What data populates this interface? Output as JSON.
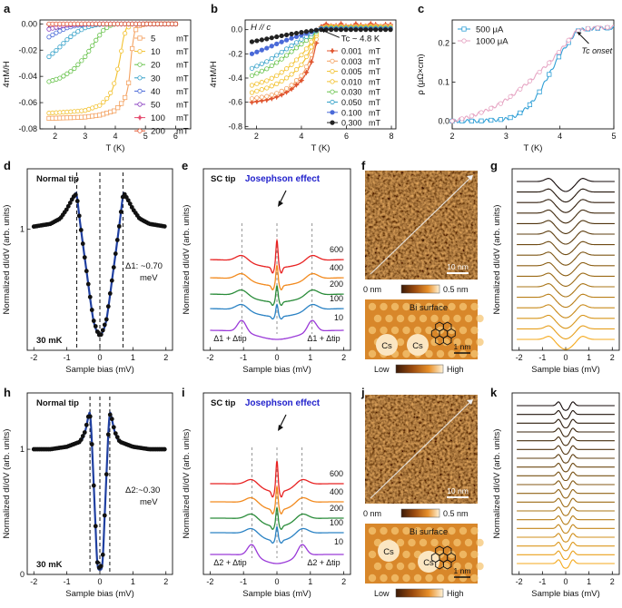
{
  "panel_labels": [
    "a",
    "b",
    "c",
    "d",
    "e",
    "f",
    "g",
    "h",
    "i",
    "j",
    "k"
  ],
  "colors": {
    "5": "#f4a261",
    "10": "#f2c12e",
    "20": "#66c24a",
    "30": "#33a0c8",
    "40": "#4a6ad8",
    "50": "#8a3fc0",
    "100": "#e54a6e",
    "200": "#e0552f",
    "c500": "#2e9fd6",
    "c1000": "#e6a3c2",
    "stsNormal": "#1f3fa0",
    "blueLbl": "#2222cc",
    "spec600": "#e82222",
    "spec400": "#f28a1e",
    "spec200": "#2a8c3a",
    "spec100": "#2a82c4",
    "spec10": "#9a3ad8"
  },
  "chart_data": [
    {
      "id": "a",
      "type": "line",
      "annotation": "H // c",
      "xlabel": "T (K)",
      "ylabel": "4πM/H",
      "xlim": [
        1.5,
        6.5
      ],
      "ylim": [
        -0.08,
        0.003
      ],
      "xticks": [
        2,
        3,
        4,
        5,
        6
      ],
      "xtick_labels": [
        "2",
        "3",
        "4",
        "5",
        "6"
      ],
      "yticks": [
        0,
        -0.02,
        -0.04,
        -0.06,
        -0.08
      ],
      "ytick_labels": [
        "0.00",
        "-0.02",
        "-0.04",
        "-0.06",
        "-0.08"
      ],
      "legend_position": "right",
      "series": [
        {
          "name": "5",
          "unit": "mT",
          "color_key": "5",
          "x": [
            1.8,
            2.5,
            3.0,
            3.5,
            4.0,
            4.3,
            4.45,
            4.55,
            4.7,
            5.0,
            6.0
          ],
          "y": [
            -0.072,
            -0.0715,
            -0.071,
            -0.0695,
            -0.066,
            -0.058,
            -0.044,
            -0.02,
            -0.002,
            0,
            0
          ]
        },
        {
          "name": "10",
          "unit": "mT",
          "color_key": "10",
          "x": [
            1.8,
            2.5,
            3.0,
            3.5,
            3.8,
            4.0,
            4.15,
            4.3,
            4.5,
            5.0,
            6.0
          ],
          "y": [
            -0.068,
            -0.067,
            -0.066,
            -0.062,
            -0.055,
            -0.043,
            -0.027,
            -0.008,
            0,
            0,
            0
          ]
        },
        {
          "name": "20",
          "unit": "mT",
          "color_key": "20",
          "x": [
            1.8,
            2.2,
            2.6,
            3.0,
            3.2,
            3.4,
            3.6,
            3.8,
            4.0,
            5.0,
            6.0
          ],
          "y": [
            -0.044,
            -0.041,
            -0.035,
            -0.025,
            -0.018,
            -0.011,
            -0.005,
            -0.0015,
            0,
            0,
            0
          ]
        },
        {
          "name": "30",
          "unit": "mT",
          "color_key": "30",
          "x": [
            1.8,
            2.1,
            2.4,
            2.7,
            3.0,
            3.3,
            3.6,
            4.0,
            5.0,
            6.0
          ],
          "y": [
            -0.025,
            -0.019,
            -0.012,
            -0.0065,
            -0.003,
            -0.001,
            -0.0002,
            0,
            0,
            0
          ]
        },
        {
          "name": "40",
          "unit": "mT",
          "color_key": "40",
          "x": [
            1.8,
            2.1,
            2.4,
            2.7,
            3.0,
            3.5,
            4.0,
            5.0,
            6.0
          ],
          "y": [
            -0.01,
            -0.006,
            -0.003,
            -0.0013,
            -0.0004,
            0,
            0,
            0,
            0
          ]
        },
        {
          "name": "50",
          "unit": "mT",
          "color_key": "50",
          "x": [
            1.8,
            2.1,
            2.4,
            2.8,
            3.2,
            4.0,
            5.0,
            6.0
          ],
          "y": [
            -0.004,
            -0.0022,
            -0.001,
            -0.0002,
            0,
            0,
            0,
            0
          ]
        },
        {
          "name": "100",
          "unit": "mT",
          "color_key": "100",
          "x": [
            1.8,
            2.5,
            3.0,
            4.0,
            5.0,
            6.0
          ],
          "y": [
            -0.0005,
            0,
            0,
            0,
            0,
            0
          ]
        },
        {
          "name": "200",
          "unit": "mT",
          "color_key": "200",
          "x": [
            1.8,
            2.5,
            3.0,
            4.0,
            5.0,
            6.0
          ],
          "y": [
            0,
            0,
            0,
            0,
            0,
            0
          ]
        }
      ]
    },
    {
      "id": "b",
      "type": "line",
      "annotation": "H // c",
      "tc_label": "Tc ~ 4.8 K",
      "xlabel": "T (K)",
      "ylabel": "4πM/H",
      "xlim": [
        1.5,
        8.2
      ],
      "ylim": [
        -0.82,
        0.08
      ],
      "xticks": [
        2,
        4,
        6,
        8
      ],
      "xtick_labels": [
        "2",
        "4",
        "6",
        "8"
      ],
      "yticks": [
        0,
        -0.2,
        -0.4,
        -0.6,
        -0.8
      ],
      "ytick_labels": [
        "0.0",
        "-0.2",
        "-0.4",
        "-0.6",
        "-0.8"
      ],
      "legend_position": "right",
      "series": [
        {
          "name": "0.001",
          "unit": "mT",
          "color_key": "200",
          "x": [
            1.8,
            2.5,
            3.0,
            3.5,
            4.0,
            4.3,
            4.5,
            4.65,
            4.8,
            5.2,
            6.0,
            7.0,
            8.0
          ],
          "y": [
            -0.6,
            -0.58,
            -0.55,
            -0.5,
            -0.42,
            -0.33,
            -0.24,
            -0.12,
            0.02,
            0.04,
            0.035,
            0.04,
            0.035
          ]
        },
        {
          "name": "0.003",
          "unit": "mT",
          "color_key": "5",
          "x": [
            1.8,
            2.5,
            3.0,
            3.5,
            4.0,
            4.3,
            4.55,
            4.8,
            5.2,
            6.0,
            7.0,
            8.0
          ],
          "y": [
            -0.57,
            -0.55,
            -0.52,
            -0.47,
            -0.38,
            -0.28,
            -0.15,
            0.01,
            0.03,
            0.025,
            0.03,
            0.03
          ]
        },
        {
          "name": "0.005",
          "unit": "mT",
          "color_key": "10",
          "x": [
            1.8,
            2.5,
            3.0,
            3.5,
            4.0,
            4.3,
            4.55,
            4.8,
            5.2,
            6.0,
            7.0,
            8.0
          ],
          "y": [
            -0.52,
            -0.48,
            -0.44,
            -0.38,
            -0.29,
            -0.2,
            -0.1,
            0.01,
            0.025,
            0.02,
            0.025,
            0.02
          ]
        },
        {
          "name": "0.010",
          "unit": "mT",
          "color_key": "10",
          "x": [
            1.8,
            2.5,
            3.0,
            3.5,
            4.0,
            4.3,
            4.55,
            4.8,
            5.2,
            6.0,
            7.0,
            8.0
          ],
          "y": [
            -0.46,
            -0.42,
            -0.37,
            -0.3,
            -0.21,
            -0.14,
            -0.07,
            0.01,
            0.02,
            0.02,
            0.02,
            0.02
          ]
        },
        {
          "name": "0.030",
          "unit": "mT",
          "color_key": "20",
          "x": [
            1.8,
            2.5,
            3.0,
            3.5,
            4.0,
            4.5,
            4.8,
            5.2,
            6.0,
            7.0,
            8.0
          ],
          "y": [
            -0.38,
            -0.32,
            -0.26,
            -0.19,
            -0.12,
            -0.05,
            0.01,
            0.015,
            0.015,
            0.015,
            0.015
          ]
        },
        {
          "name": "0.050",
          "unit": "mT",
          "color_key": "30",
          "x": [
            1.8,
            2.5,
            3.0,
            3.5,
            4.0,
            4.5,
            4.8,
            5.2,
            6.0,
            7.0,
            8.0
          ],
          "y": [
            -0.32,
            -0.26,
            -0.2,
            -0.14,
            -0.08,
            -0.03,
            0.01,
            0.01,
            0.01,
            0.01,
            0.01
          ]
        },
        {
          "name": "0.100",
          "unit": "mT",
          "color_key": "40",
          "x": [
            1.8,
            2.5,
            3.0,
            3.5,
            4.0,
            4.5,
            4.8,
            5.2,
            6.0,
            7.0,
            8.0
          ],
          "y": [
            -0.2,
            -0.15,
            -0.11,
            -0.075,
            -0.045,
            -0.015,
            0.005,
            0.005,
            0.005,
            0.005,
            0.005
          ]
        },
        {
          "name": "0.300",
          "unit": "mT",
          "color_key": "black",
          "x": [
            1.8,
            2.5,
            3.0,
            3.5,
            4.0,
            4.5,
            4.8,
            5.5,
            6.0,
            7.0,
            8.0
          ],
          "y": [
            -0.1,
            -0.075,
            -0.055,
            -0.038,
            -0.022,
            -0.008,
            0,
            0,
            0,
            0,
            0
          ]
        }
      ]
    },
    {
      "id": "c",
      "type": "line",
      "xlabel": "T (K)",
      "ylabel": "ρ (μΩ×cm)",
      "tc_label": "Tc onset",
      "xlim": [
        2,
        5
      ],
      "ylim": [
        -0.02,
        0.26
      ],
      "xticks": [
        2,
        3,
        4,
        5
      ],
      "xtick_labels": [
        "2",
        "3",
        "4",
        "5"
      ],
      "yticks": [
        0,
        0.1,
        0.2
      ],
      "ytick_labels": [
        "0.0",
        "0.1",
        "0.2"
      ],
      "legend_position": "top-left",
      "series": [
        {
          "name": "500 μA",
          "color_key": "c500",
          "x": [
            2.0,
            2.5,
            3.0,
            3.2,
            3.4,
            3.6,
            3.8,
            4.0,
            4.2,
            4.3,
            4.4,
            4.6,
            5.0
          ],
          "y": [
            0.0,
            0.0,
            0.005,
            0.015,
            0.035,
            0.07,
            0.12,
            0.17,
            0.21,
            0.23,
            0.235,
            0.238,
            0.24
          ]
        },
        {
          "name": "1000 μA",
          "color_key": "c1000",
          "x": [
            2.0,
            2.3,
            2.6,
            2.9,
            3.2,
            3.5,
            3.8,
            4.0,
            4.2,
            4.3,
            4.5,
            5.0
          ],
          "y": [
            0.0,
            0.01,
            0.025,
            0.045,
            0.075,
            0.11,
            0.15,
            0.18,
            0.215,
            0.23,
            0.238,
            0.242
          ]
        }
      ]
    },
    {
      "id": "d",
      "type": "line",
      "title": "Normal tip",
      "temp": "30 mK",
      "annotation_line1": "Δ1: ~0.70",
      "annotation_line2": "meV",
      "xlabel": "Sample bias (mV)",
      "ylabel": "Normalized dI/dV (arb. units)",
      "xlim": [
        -2.2,
        2.2
      ],
      "ylim": [
        0.1,
        1.45
      ],
      "xticks": [
        -2,
        -1,
        0,
        1,
        2
      ],
      "xtick_labels": [
        "-2",
        "-1",
        "0",
        "1",
        "2"
      ],
      "yticks": [
        1
      ],
      "ytick_labels": [
        "1"
      ],
      "gap_markers_mV": [
        -0.7,
        0,
        0.7
      ],
      "series": [
        {
          "name": "data",
          "x": [
            -2.0,
            -1.5,
            -1.2,
            -1.0,
            -0.85,
            -0.75,
            -0.7,
            -0.6,
            -0.4,
            -0.2,
            -0.05,
            0,
            0.05,
            0.2,
            0.4,
            0.6,
            0.7,
            0.75,
            0.85,
            1.0,
            1.2,
            1.5,
            2.0
          ],
          "y": [
            1.02,
            1.04,
            1.08,
            1.15,
            1.22,
            1.26,
            1.25,
            1.05,
            0.68,
            0.33,
            0.22,
            0.21,
            0.22,
            0.33,
            0.68,
            1.05,
            1.25,
            1.26,
            1.22,
            1.15,
            1.08,
            1.04,
            1.02
          ]
        }
      ]
    },
    {
      "id": "e",
      "type": "line",
      "title": "SC tip",
      "effect_label": "Josephson effect",
      "gap_label_left": "Δ1 + Δtip",
      "gap_label_right": "Δ1 + Δtip",
      "xlabel": "Sample bias (mV)",
      "ylabel": "Normalized dI/dV (arb. units)",
      "xlim": [
        -2.2,
        2.2
      ],
      "xticks": [
        -2,
        -1,
        0,
        1,
        2
      ],
      "xtick_labels": [
        "-2",
        "-1",
        "0",
        "1",
        "2"
      ],
      "gap_markers_mV": [
        -1.05,
        0,
        1.05
      ],
      "series_labels": [
        "600",
        "400",
        "200",
        "100",
        "10"
      ],
      "series_color_keys": [
        "spec600",
        "spec400",
        "spec200",
        "spec100",
        "spec10"
      ]
    },
    {
      "id": "f",
      "scale_bar_top": "10 nm",
      "cbar_min": "0 nm",
      "cbar_max": "0.5 nm",
      "surface_label": "Bi surface",
      "atom_labels": [
        "Cs",
        "Cs"
      ],
      "scale_bar_bottom": "1 nm",
      "low_label": "Low",
      "high_label": "High"
    },
    {
      "id": "g",
      "type": "line",
      "xlabel": "Sample bias (mV)",
      "ylabel": "Normalized dI/dV (arb. units)",
      "xlim": [
        -2.3,
        2.3
      ],
      "xticks": [
        -2,
        -1,
        0,
        1,
        2
      ],
      "xtick_labels": [
        "-2",
        "-1",
        "0",
        "1",
        "2"
      ],
      "n_curves": 16,
      "gap_mV": 0.7
    },
    {
      "id": "h",
      "type": "line",
      "title": "Normal tip",
      "temp": "30 mK",
      "annotation_line1": "Δ2:~0.30",
      "annotation_line2": "meV",
      "xlabel": "Sample bias (mV)",
      "ylabel": "Normalized dI/dV (arb. units)",
      "xlim": [
        -2.2,
        2.2
      ],
      "ylim": [
        0,
        1.45
      ],
      "xticks": [
        -2,
        -1,
        0,
        1,
        2
      ],
      "xtick_labels": [
        "-2",
        "-1",
        "0",
        "1",
        "2"
      ],
      "yticks": [
        0,
        1
      ],
      "ytick_labels": [
        "0",
        "1"
      ],
      "gap_markers_mV": [
        -0.3,
        0,
        0.3
      ],
      "series": [
        {
          "name": "data",
          "x": [
            -2.0,
            -1.5,
            -1.0,
            -0.6,
            -0.45,
            -0.35,
            -0.3,
            -0.25,
            -0.15,
            -0.08,
            0,
            0.08,
            0.15,
            0.25,
            0.3,
            0.35,
            0.45,
            0.6,
            1.0,
            1.5,
            2.0
          ],
          "y": [
            1.0,
            1.0,
            1.02,
            1.06,
            1.14,
            1.26,
            1.28,
            1.1,
            0.5,
            0.1,
            0.04,
            0.1,
            0.5,
            1.1,
            1.28,
            1.26,
            1.14,
            1.06,
            1.02,
            1.0,
            1.0
          ]
        }
      ]
    },
    {
      "id": "i",
      "type": "line",
      "title": "SC tip",
      "effect_label": "Josephson effect",
      "gap_label_left": "Δ2 + Δtip",
      "gap_label_right": "Δ2 + Δtip",
      "xlabel": "Sample bias (mV)",
      "ylabel": "Normalized dI/dV (arb. units)",
      "xlim": [
        -2.2,
        2.2
      ],
      "xticks": [
        -2,
        -1,
        0,
        1,
        2
      ],
      "xtick_labels": [
        "-2",
        "-1",
        "0",
        "1",
        "2"
      ],
      "gap_markers_mV": [
        -0.75,
        0,
        0.75
      ],
      "series_labels": [
        "600",
        "400",
        "200",
        "100",
        "10"
      ],
      "series_color_keys": [
        "spec600",
        "spec400",
        "spec200",
        "spec100",
        "spec10"
      ]
    },
    {
      "id": "j",
      "scale_bar_top": "10 nm",
      "cbar_min": "0 nm",
      "cbar_max": "0.5 nm",
      "surface_label": "Bi surface",
      "atom_labels": [
        "Cs",
        "Cs"
      ],
      "scale_bar_bottom": "1 nm",
      "low_label": "Low",
      "high_label": "High"
    },
    {
      "id": "k",
      "type": "line",
      "xlabel": "Sample bias (mV)",
      "ylabel": "Normalized dI/dV (arb. units)",
      "xlim": [
        -2.3,
        2.3
      ],
      "xticks": [
        -2,
        -1,
        0,
        1,
        2
      ],
      "xtick_labels": [
        "-2",
        "-1",
        "0",
        "1",
        "2"
      ],
      "n_curves": 19,
      "gap_mV": 0.3
    }
  ]
}
